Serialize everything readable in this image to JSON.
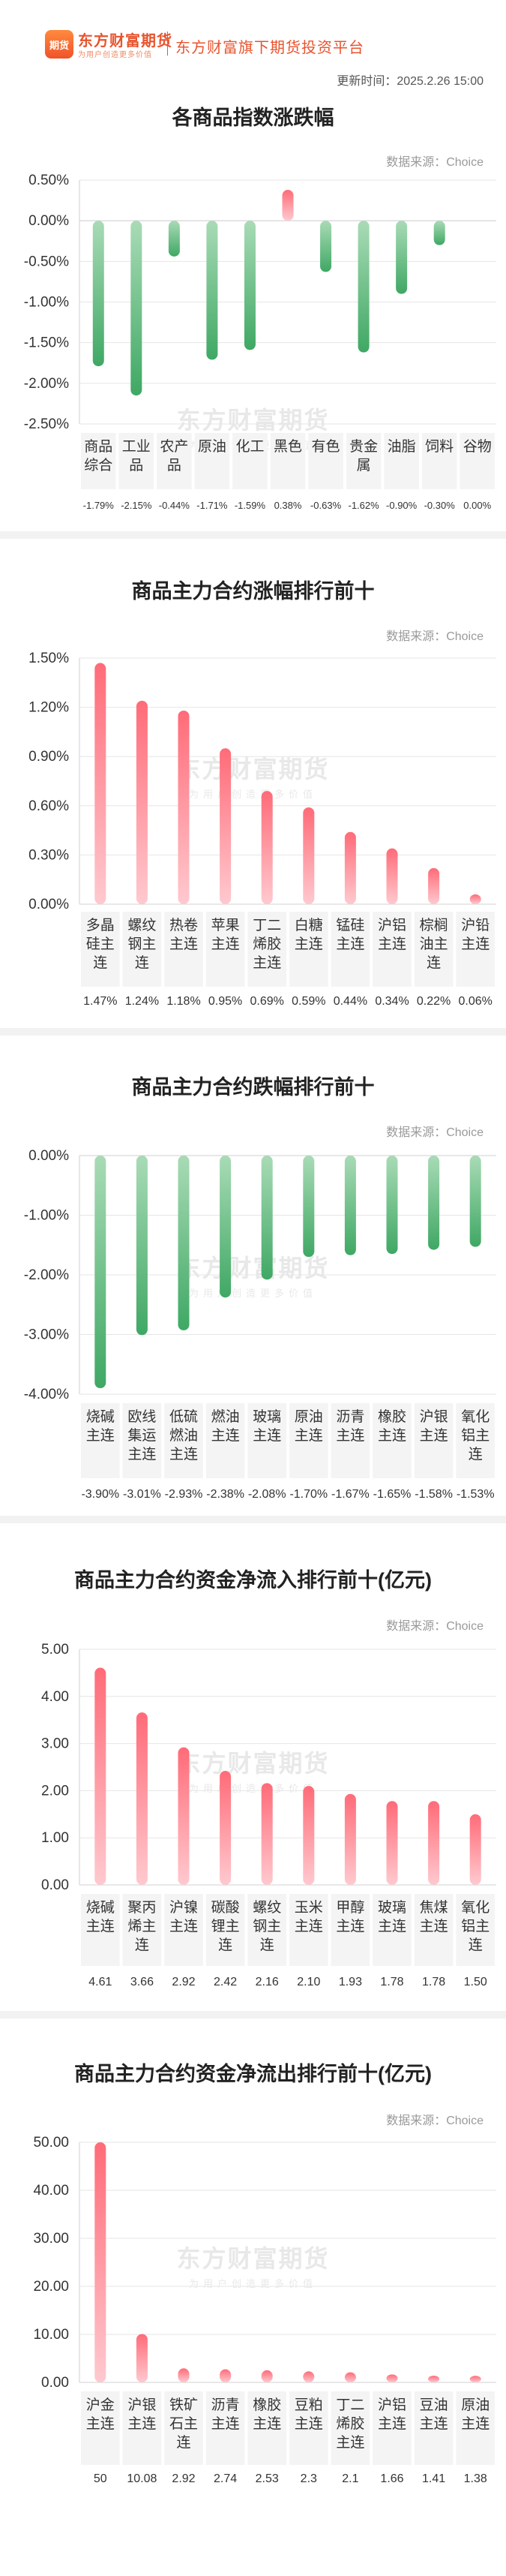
{
  "header": {
    "logo_mark": "期货",
    "brand": "东方财富期货",
    "slogan": "为用户创造更多价值",
    "platform": "东方财富旗下期货投资平台",
    "update_time": "更新时间：2025.2.26 15:00"
  },
  "watermark": {
    "main": "东方财富期货",
    "sub": "为用户创造更多价值"
  },
  "colors": {
    "up": "#f0404f",
    "down": "#4caf6e"
  },
  "chart_data": [
    {
      "type": "bar",
      "title": "各商品指数涨跌幅",
      "source": "数据来源：Choice",
      "categories": [
        "商品综合",
        "工业品",
        "农产品",
        "原油",
        "化工",
        "黑色",
        "有色",
        "贵金属",
        "油脂",
        "饲料",
        "谷物"
      ],
      "values": [
        -1.79,
        -2.15,
        -0.44,
        -1.71,
        -1.59,
        0.38,
        -0.63,
        -1.62,
        -0.9,
        -0.3,
        0.0
      ],
      "value_labels": [
        "-1.79%",
        "-2.15%",
        "-0.44%",
        "-1.71%",
        "-1.59%",
        "0.38%",
        "-0.63%",
        "-1.62%",
        "-0.90%",
        "-0.30%",
        "0.00%"
      ],
      "ylim": [
        -2.5,
        0.5
      ],
      "ticks": [
        0.5,
        0,
        -0.5,
        -1.0,
        -1.5,
        -2.0,
        -2.5
      ],
      "tick_labels": [
        "0.50%",
        "0.00%",
        "-0.50%",
        "-1.00%",
        "-1.50%",
        "-2.00%",
        "-2.50%"
      ]
    },
    {
      "type": "bar",
      "title": "商品主力合约涨幅排行前十",
      "source": "数据来源：Choice",
      "categories": [
        "多晶硅主连",
        "螺纹钢主连",
        "热卷主连",
        "苹果主连",
        "丁二烯胶主连",
        "白糖主连",
        "锰硅主连",
        "沪铝主连",
        "棕榈油主连",
        "沪铅主连"
      ],
      "values": [
        1.47,
        1.24,
        1.18,
        0.95,
        0.69,
        0.59,
        0.44,
        0.34,
        0.22,
        0.06
      ],
      "value_labels": [
        "1.47%",
        "1.24%",
        "1.18%",
        "0.95%",
        "0.69%",
        "0.59%",
        "0.44%",
        "0.34%",
        "0.22%",
        "0.06%"
      ],
      "ylim": [
        0,
        1.5
      ],
      "ticks": [
        1.5,
        1.2,
        0.9,
        0.6,
        0.3,
        0
      ],
      "tick_labels": [
        "1.50%",
        "1.20%",
        "0.90%",
        "0.60%",
        "0.30%",
        "0.00%"
      ]
    },
    {
      "type": "bar",
      "title": "商品主力合约跌幅排行前十",
      "source": "数据来源：Choice",
      "categories": [
        "烧碱主连",
        "欧线集运主连",
        "低硫燃油主连",
        "燃油主连",
        "玻璃主连",
        "原油主连",
        "沥青主连",
        "橡胶主连",
        "沪银主连",
        "氧化铝主连"
      ],
      "values": [
        -3.9,
        -3.01,
        -2.93,
        -2.38,
        -2.08,
        -1.7,
        -1.67,
        -1.65,
        -1.58,
        -1.53
      ],
      "value_labels": [
        "-3.90%",
        "-3.01%",
        "-2.93%",
        "-2.38%",
        "-2.08%",
        "-1.70%",
        "-1.67%",
        "-1.65%",
        "-1.58%",
        "-1.53%"
      ],
      "ylim": [
        -4,
        0
      ],
      "ticks": [
        0,
        -1,
        -2,
        -3,
        -4
      ],
      "tick_labels": [
        "0.00%",
        "-1.00%",
        "-2.00%",
        "-3.00%",
        "-4.00%"
      ]
    },
    {
      "type": "bar",
      "title": "商品主力合约资金净流入排行前十(亿元)",
      "source": "数据来源：Choice",
      "categories": [
        "烧碱主连",
        "聚丙烯主连",
        "沪镍主连",
        "碳酸锂主连",
        "螺纹钢主连",
        "玉米主连",
        "甲醇主连",
        "玻璃主连",
        "焦煤主连",
        "氧化铝主连"
      ],
      "values": [
        4.61,
        3.66,
        2.92,
        2.42,
        2.16,
        2.1,
        1.93,
        1.78,
        1.78,
        1.5
      ],
      "value_labels": [
        "4.61",
        "3.66",
        "2.92",
        "2.42",
        "2.16",
        "2.10",
        "1.93",
        "1.78",
        "1.78",
        "1.50"
      ],
      "ylim": [
        0,
        5
      ],
      "ticks": [
        5,
        4,
        3,
        2,
        1,
        0
      ],
      "tick_labels": [
        "5.00",
        "4.00",
        "3.00",
        "2.00",
        "1.00",
        "0.00"
      ]
    },
    {
      "type": "bar",
      "title": "商品主力合约资金净流出排行前十(亿元)",
      "source": "数据来源：Choice",
      "categories": [
        "沪金主连",
        "沪银主连",
        "铁矿石主连",
        "沥青主连",
        "橡胶主连",
        "豆粕主连",
        "丁二烯胶主连",
        "沪铝主连",
        "豆油主连",
        "原油主连"
      ],
      "values": [
        50,
        10.08,
        2.92,
        2.74,
        2.53,
        2.3,
        2.1,
        1.66,
        1.41,
        1.38
      ],
      "value_labels": [
        "50",
        "10.08",
        "2.92",
        "2.74",
        "2.53",
        "2.3",
        "2.1",
        "1.66",
        "1.41",
        "1.38"
      ],
      "ylim": [
        0,
        50
      ],
      "ticks": [
        50,
        40,
        30,
        20,
        10,
        0
      ],
      "tick_labels": [
        "50.00",
        "40.00",
        "30.00",
        "20.00",
        "10.00",
        "0.00"
      ]
    }
  ]
}
